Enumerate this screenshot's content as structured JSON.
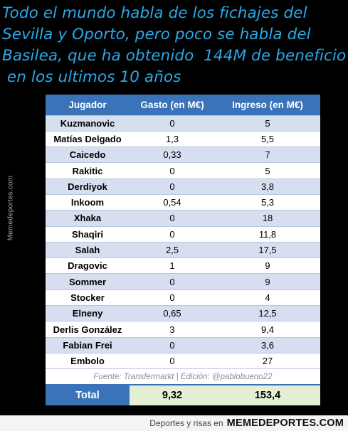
{
  "headline": {
    "lines": [
      "Todo el mundo habla de los fichajes del",
      "Sevilla y Oporto, pero poco se habla del",
      "Basilea, que ha obtenido  144M de beneficio",
      " en los ultimos 10 años"
    ]
  },
  "side_watermark": "Memedeportes.com",
  "table": {
    "headers": [
      "Jugador",
      "Gasto (en M€)",
      "Ingreso (en M€)"
    ],
    "rows": [
      {
        "player": "Kuzmanovic",
        "spend": "0",
        "income": "5"
      },
      {
        "player": "Matías Delgado",
        "spend": "1,3",
        "income": "5,5"
      },
      {
        "player": "Caicedo",
        "spend": "0,33",
        "income": "7"
      },
      {
        "player": "Rakitic",
        "spend": "0",
        "income": "5"
      },
      {
        "player": "Derdiyok",
        "spend": "0",
        "income": "3,8"
      },
      {
        "player": "Inkoom",
        "spend": "0,54",
        "income": "5,3"
      },
      {
        "player": "Xhaka",
        "spend": "0",
        "income": "18"
      },
      {
        "player": "Shaqiri",
        "spend": "0",
        "income": "11,8"
      },
      {
        "player": "Salah",
        "spend": "2,5",
        "income": "17,5"
      },
      {
        "player": "Dragovic",
        "spend": "1",
        "income": "9"
      },
      {
        "player": "Sommer",
        "spend": "0",
        "income": "9"
      },
      {
        "player": "Stocker",
        "spend": "0",
        "income": "4"
      },
      {
        "player": "Elneny",
        "spend": "0,65",
        "income": "12,5"
      },
      {
        "player": "Derlis González",
        "spend": "3",
        "income": "9,4"
      },
      {
        "player": "Fabian Frei",
        "spend": "0",
        "income": "3,6"
      },
      {
        "player": "Embolo",
        "spend": "0",
        "income": "27"
      }
    ],
    "source": "Fuente: Transfermarkt  |  Edición: @pablobueno22",
    "total": {
      "label": "Total",
      "spend": "9,32",
      "income": "153,4"
    }
  },
  "footer": {
    "tagline": "Deportes y risas en",
    "brand": "MEMEDEPORTES.COM"
  },
  "colors": {
    "headline": "#2aa8e8",
    "header_bg": "#3b73b9",
    "row_alt": "#d5dff0",
    "total_value_bg": "#e4efd6"
  }
}
